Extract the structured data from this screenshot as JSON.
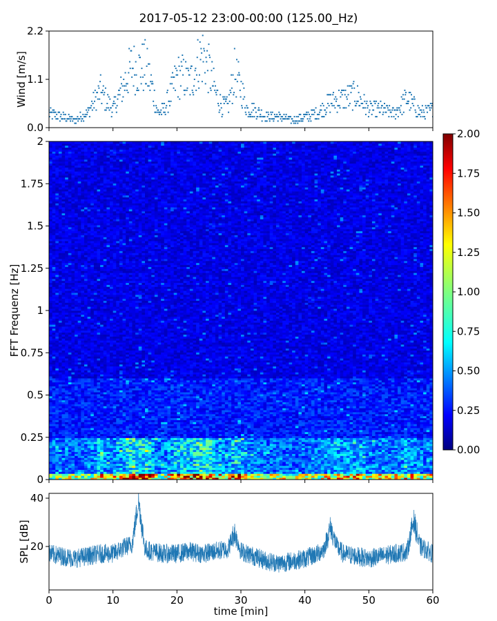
{
  "figure": {
    "title": "2017-05-12 23:00-00:00 (125.00_Hz)"
  },
  "chart_data": [
    {
      "type": "scatter",
      "panel": "wind",
      "ylabel": "Wind [m/s]",
      "xlim": [
        0,
        60
      ],
      "ylim": [
        0,
        2.2
      ],
      "yticks": [
        0,
        1.1,
        2.2
      ],
      "ytick_labels": [
        "0.0",
        "1.1",
        "2.2"
      ],
      "marker_color": "#1f77b4",
      "grid": false,
      "series": [
        {
          "x": [
            0,
            2,
            4,
            6,
            8,
            10,
            11,
            12,
            13,
            14,
            15,
            16,
            17,
            18,
            19,
            20,
            21,
            22,
            23,
            24,
            25,
            26,
            27,
            28,
            29,
            30,
            31,
            32,
            34,
            36,
            38,
            40,
            42,
            44,
            46,
            48,
            50,
            52,
            54,
            56,
            58,
            60
          ],
          "y": [
            0.4,
            0.3,
            0.2,
            0.4,
            1.0,
            0.5,
            0.9,
            1.3,
            1.7,
            1.6,
            1.7,
            1.2,
            0.4,
            0.5,
            0.9,
            1.4,
            1.4,
            1.2,
            1.7,
            2.0,
            1.6,
            1.0,
            0.6,
            0.6,
            1.5,
            1.1,
            0.5,
            0.5,
            0.3,
            0.3,
            0.2,
            0.3,
            0.4,
            0.7,
            0.8,
            0.9,
            0.5,
            0.5,
            0.4,
            0.8,
            0.4,
            0.5
          ]
        }
      ]
    },
    {
      "type": "heatmap",
      "panel": "spectrogram",
      "ylabel": "FFT Frequenz [Hz]",
      "xlim": [
        0,
        60
      ],
      "ylim": [
        0,
        2
      ],
      "yticks": [
        0,
        0.25,
        0.5,
        0.75,
        1,
        1.25,
        1.5,
        1.75,
        2
      ],
      "ytick_labels": [
        "0",
        "0.25",
        "0.5",
        "0.75",
        "1",
        "1.25",
        "1.5",
        "1.75",
        "2"
      ],
      "colormap": "jet",
      "colorbar": {
        "min": 0,
        "max": 2,
        "ticks": [
          "0.00",
          "0.25",
          "0.50",
          "0.75",
          "1.00",
          "1.25",
          "1.50",
          "1.75",
          "2.00"
        ],
        "colors": [
          "#00007f",
          "#0000ff",
          "#007fff",
          "#00ffff",
          "#7fff7f",
          "#ffff00",
          "#ff7f00",
          "#ff0000",
          "#7f0000"
        ]
      },
      "bands": [
        {
          "freq_range": [
            0,
            0.03
          ],
          "typical_value": 1.3
        },
        {
          "freq_range": [
            0.03,
            0.25
          ],
          "typical_value": 0.55
        },
        {
          "freq_range": [
            0.25,
            0.6
          ],
          "typical_value": 0.3
        },
        {
          "freq_range": [
            0.6,
            2
          ],
          "typical_value": 0.2
        }
      ]
    },
    {
      "type": "line",
      "panel": "spl",
      "ylabel": "SPL [dB]",
      "xlabel": "time [min]",
      "xlim": [
        0,
        60
      ],
      "ylim": [
        2,
        42
      ],
      "yticks": [
        20,
        40
      ],
      "ytick_labels": [
        "20",
        "40"
      ],
      "xticks": [
        0,
        10,
        20,
        30,
        40,
        50,
        60
      ],
      "xtick_labels": [
        "0",
        "10",
        "20",
        "30",
        "40",
        "50",
        "60"
      ],
      "line_color": "#1f77b4",
      "grid": false,
      "series": [
        {
          "x": [
            0,
            2,
            4,
            6,
            8,
            10,
            12,
            13,
            14,
            15,
            16,
            18,
            20,
            22,
            24,
            26,
            28,
            29,
            30,
            32,
            34,
            36,
            38,
            40,
            42,
            43,
            44,
            45,
            46,
            48,
            50,
            52,
            54,
            56,
            57,
            58,
            60
          ],
          "y": [
            17,
            16,
            15,
            16,
            17,
            17,
            20,
            21,
            39,
            19,
            18,
            17,
            17,
            18,
            17,
            18,
            19,
            26,
            18,
            16,
            14,
            13,
            14,
            15,
            17,
            19,
            28,
            20,
            17,
            16,
            15,
            16,
            17,
            18,
            31,
            20,
            17
          ]
        }
      ]
    }
  ]
}
